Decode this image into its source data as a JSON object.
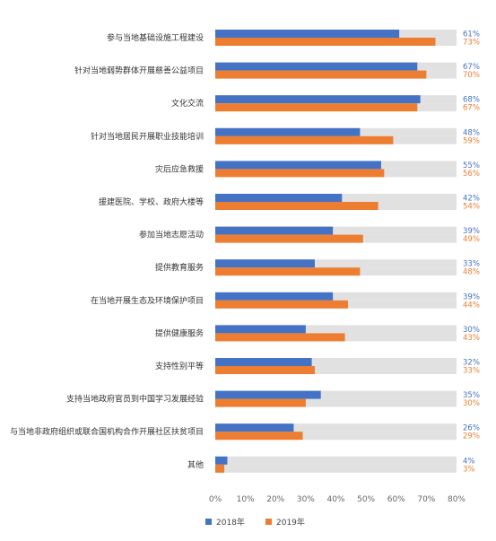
{
  "chart_data": {
    "type": "bar",
    "orientation": "horizontal",
    "categories": [
      "参与当地基础设施工程建设",
      "针对当地弱势群体开展慈善公益项目",
      "文化交流",
      "针对当地居民开展职业技能培训",
      "灾后应急救援",
      "援建医院、学校、政府大楼等",
      "参加当地志愿活动",
      "提供教育服务",
      "在当地开展生态及环境保护项目",
      "提供健康服务",
      "支持性别平等",
      "支持当地政府官员到中国学习发展经验",
      "与当地非政府组织或联合国机构合作开展社区扶贫项目",
      "其他"
    ],
    "series": [
      {
        "name": "2018年",
        "color": "#4472c4",
        "values": [
          61,
          67,
          68,
          48,
          55,
          42,
          39,
          33,
          39,
          30,
          32,
          35,
          26,
          4
        ],
        "labels": [
          "61%",
          "67%",
          "68%",
          "48%",
          "55%",
          "42%",
          "39%",
          "33%",
          "39%",
          "30%",
          "32%",
          "35%",
          "26%",
          "4%"
        ]
      },
      {
        "name": "2019年",
        "color": "#ed7d31",
        "values": [
          73,
          70,
          67,
          59,
          56,
          54,
          49,
          48,
          44,
          43,
          33,
          30,
          29,
          3
        ],
        "labels": [
          "73%",
          "70%",
          "67%",
          "59%",
          "56%",
          "54%",
          "49%",
          "48%",
          "44%",
          "43%",
          "33%",
          "30%",
          "29%",
          "3%"
        ]
      }
    ],
    "xlim": [
      0,
      80
    ],
    "xticks": [
      0,
      10,
      20,
      30,
      40,
      50,
      60,
      70,
      80
    ],
    "xtick_labels": [
      "0%",
      "10%",
      "20%",
      "30%",
      "40%",
      "50%",
      "60%",
      "70%",
      "80%"
    ],
    "background_track": true,
    "track_color": "#e1e1e1",
    "grid": false,
    "legend_position": "bottom"
  }
}
